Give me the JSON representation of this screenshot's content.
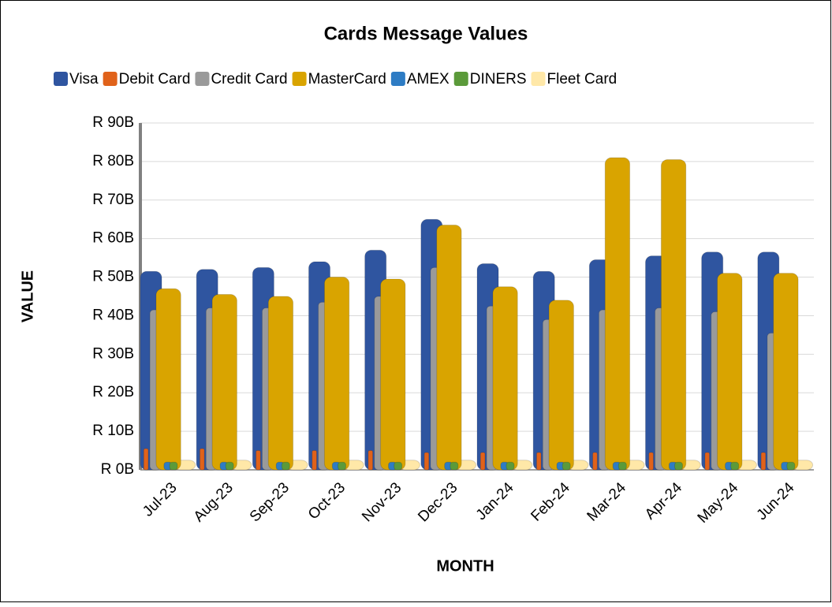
{
  "chart_data": {
    "type": "bar",
    "title": "Cards Message Values",
    "x_label": "MONTH",
    "y_label": "VALUE",
    "categories": [
      "Jul-23",
      "Aug-23",
      "Sep-23",
      "Oct-23",
      "Nov-23",
      "Dec-23",
      "Jan-24",
      "Feb-24",
      "Mar-24",
      "Apr-24",
      "May-24",
      "Jun-24"
    ],
    "series": [
      {
        "name": "Visa",
        "color": "#2f55a0",
        "values": [
          51.5,
          52,
          52.5,
          54,
          57,
          65,
          53.5,
          51.5,
          54.5,
          55.5,
          56.5,
          56.5
        ]
      },
      {
        "name": "Debit Card",
        "color": "#e0621a",
        "values": [
          5.5,
          5.5,
          5,
          5,
          5,
          4.5,
          4.5,
          4.5,
          4.5,
          4.5,
          4.5,
          4.5
        ]
      },
      {
        "name": "Credit Card",
        "color": "#9a9a9a",
        "values": [
          41.5,
          42,
          42,
          43.5,
          45,
          52.5,
          42.5,
          39,
          41.5,
          42,
          41,
          35.5
        ]
      },
      {
        "name": "MasterCard",
        "color": "#d9a400",
        "values": [
          47,
          45.5,
          45,
          50,
          49.5,
          63.5,
          47.5,
          44,
          81,
          80.5,
          51,
          51
        ]
      },
      {
        "name": "AMEX",
        "color": "#2e7cc4",
        "values": [
          2,
          2,
          2,
          2,
          2,
          2,
          2,
          2,
          2,
          2,
          2,
          2
        ]
      },
      {
        "name": "DINERS",
        "color": "#5b9a3a",
        "values": [
          2,
          2,
          2,
          2,
          2,
          2,
          2,
          2,
          2,
          2,
          2,
          2
        ]
      },
      {
        "name": "Fleet Card",
        "color": "#ffe8a8",
        "values": [
          2.5,
          2.5,
          2.5,
          2.5,
          2.5,
          2.5,
          2.5,
          2.5,
          2.5,
          2.5,
          2.5,
          2.5
        ]
      }
    ],
    "ylim": [
      0,
      90
    ],
    "yticks": [
      {
        "value": 0,
        "label": "R 0B"
      },
      {
        "value": 10,
        "label": "R 10B"
      },
      {
        "value": 20,
        "label": "R 20B"
      },
      {
        "value": 30,
        "label": "R 30B"
      },
      {
        "value": 40,
        "label": "R 40B"
      },
      {
        "value": 50,
        "label": "R 50B"
      },
      {
        "value": 60,
        "label": "R 60B"
      },
      {
        "value": 70,
        "label": "R 70B"
      },
      {
        "value": 80,
        "label": "R 80B"
      },
      {
        "value": 90,
        "label": "R 90B"
      }
    ],
    "grid": true,
    "legend": "top"
  }
}
